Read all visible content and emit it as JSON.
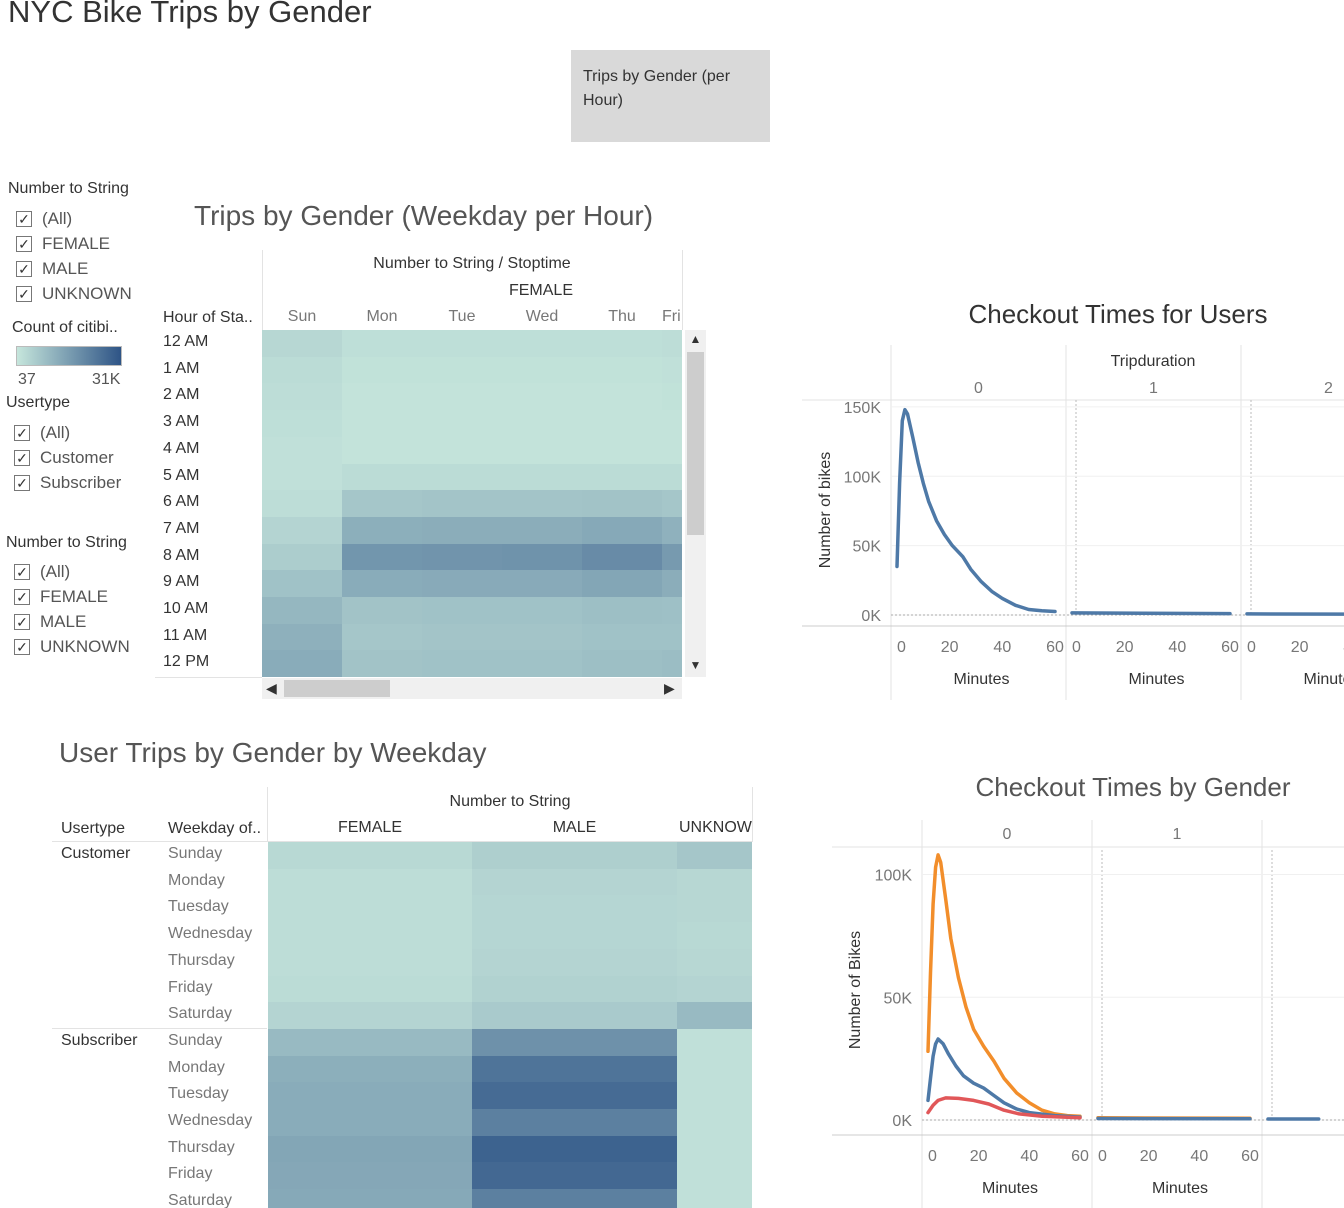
{
  "page": {
    "title": "NYC Bike Trips by Gender"
  },
  "nav_button": {
    "label": "Trips by Gender (per Hour)"
  },
  "filter_gender_1": {
    "title": "Number to String",
    "options": [
      "(All)",
      "FEMALE",
      "MALE",
      "UNKNOWN"
    ]
  },
  "legend": {
    "title": "Count of citibi..",
    "min_label": "37",
    "max_label": "31K",
    "colors": [
      "#c6e6dc",
      "#2e5486"
    ]
  },
  "filter_usertype": {
    "title": "Usertype",
    "options": [
      "(All)",
      "Customer",
      "Subscriber"
    ]
  },
  "filter_gender_2": {
    "title": "Number to String",
    "options": [
      "(All)",
      "FEMALE",
      "MALE",
      "UNKNOWN"
    ]
  },
  "heatmap1": {
    "title": "Trips by Gender (Weekday per Hour)",
    "col_header": "Number to String / Stoptime",
    "group": "FEMALE",
    "row_header": "Hour of Sta..",
    "days": [
      "Sun",
      "Mon",
      "Tue",
      "Wed",
      "Thu",
      "Fri"
    ],
    "hours": [
      "12 AM",
      "1 AM",
      "2 AM",
      "3 AM",
      "4 AM",
      "5 AM",
      "6 AM",
      "7 AM",
      "8 AM",
      "9 AM",
      "10 AM",
      "11 AM",
      "12 PM"
    ]
  },
  "heatmap2": {
    "title": "User Trips by Gender by Weekday",
    "col_header": "Number to String",
    "row_header_1": "Usertype",
    "row_header_2": "Weekday of..",
    "columns": [
      "FEMALE",
      "MALE",
      "UNKNOW"
    ],
    "usertypes": [
      "Customer",
      "Subscriber"
    ],
    "weekdays": [
      "Sunday",
      "Monday",
      "Tuesday",
      "Wednesday",
      "Thursday",
      "Friday",
      "Saturday"
    ]
  },
  "chart_data": [
    {
      "type": "heatmap",
      "title": "Trips by Gender (Weekday per Hour)",
      "x": [
        "Sun",
        "Mon",
        "Tue",
        "Wed",
        "Thu",
        "Fri"
      ],
      "y": [
        "12 AM",
        "1 AM",
        "2 AM",
        "3 AM",
        "4 AM",
        "5 AM",
        "6 AM",
        "7 AM",
        "8 AM",
        "9 AM",
        "10 AM",
        "11 AM",
        "12 PM"
      ],
      "values": [
        [
          0.1,
          0.05,
          0.05,
          0.05,
          0.05,
          0.06
        ],
        [
          0.07,
          0.03,
          0.03,
          0.03,
          0.03,
          0.04
        ],
        [
          0.06,
          0.02,
          0.02,
          0.02,
          0.02,
          0.03
        ],
        [
          0.05,
          0.02,
          0.02,
          0.02,
          0.02,
          0.02
        ],
        [
          0.04,
          0.02,
          0.02,
          0.02,
          0.02,
          0.02
        ],
        [
          0.04,
          0.07,
          0.07,
          0.07,
          0.07,
          0.07
        ],
        [
          0.06,
          0.22,
          0.23,
          0.23,
          0.24,
          0.22
        ],
        [
          0.12,
          0.38,
          0.39,
          0.39,
          0.42,
          0.36
        ],
        [
          0.17,
          0.55,
          0.56,
          0.57,
          0.62,
          0.52
        ],
        [
          0.25,
          0.4,
          0.41,
          0.41,
          0.44,
          0.39
        ],
        [
          0.32,
          0.24,
          0.25,
          0.25,
          0.27,
          0.26
        ],
        [
          0.37,
          0.22,
          0.23,
          0.23,
          0.25,
          0.25
        ],
        [
          0.4,
          0.24,
          0.25,
          0.25,
          0.27,
          0.28
        ]
      ]
    },
    {
      "type": "line",
      "title": "Checkout Times for Users",
      "column_header": "Tripduration",
      "panels": [
        "0",
        "1",
        "2"
      ],
      "xlabel": "Minutes",
      "ylabel": "Number of bikes",
      "x_ticks": [
        "0",
        "20",
        "40",
        "60"
      ],
      "y_ticks": [
        "0K",
        "50K",
        "100K",
        "150K"
      ],
      "ylim": [
        0,
        155000
      ],
      "series": [
        {
          "color": "#4e79a7",
          "panel0": [
            [
              0,
              35000
            ],
            [
              1,
              95000
            ],
            [
              2,
              140000
            ],
            [
              3,
              148000
            ],
            [
              4,
              145000
            ],
            [
              6,
              128000
            ],
            [
              8,
              110000
            ],
            [
              10,
              95000
            ],
            [
              12,
              82000
            ],
            [
              15,
              68000
            ],
            [
              18,
              58000
            ],
            [
              21,
              50000
            ],
            [
              25,
              42000
            ],
            [
              28,
              33000
            ],
            [
              32,
              24000
            ],
            [
              36,
              17000
            ],
            [
              40,
              12000
            ],
            [
              45,
              7000
            ],
            [
              50,
              4000
            ],
            [
              55,
              3000
            ],
            [
              60,
              2500
            ]
          ],
          "panel1": [
            [
              0,
              1500
            ],
            [
              60,
              1000
            ]
          ],
          "panel2": [
            [
              0,
              800
            ],
            [
              60,
              600
            ]
          ]
        }
      ]
    },
    {
      "type": "line",
      "title": "Checkout Times by Gender",
      "panels": [
        "0",
        "1"
      ],
      "xlabel": "Minutes",
      "ylabel": "Number of Bikes",
      "x_ticks": [
        "0",
        "20",
        "40",
        "60"
      ],
      "y_ticks": [
        "0K",
        "50K",
        "100K"
      ],
      "ylim": [
        0,
        110000
      ],
      "series": [
        {
          "color": "#f28e2b",
          "panel0": [
            [
              0,
              28000
            ],
            [
              1,
              60000
            ],
            [
              2,
              88000
            ],
            [
              3,
              103000
            ],
            [
              4,
              108000
            ],
            [
              5,
              105000
            ],
            [
              7,
              90000
            ],
            [
              9,
              74000
            ],
            [
              12,
              58000
            ],
            [
              15,
              46000
            ],
            [
              18,
              37000
            ],
            [
              22,
              30000
            ],
            [
              26,
              24000
            ],
            [
              30,
              17000
            ],
            [
              35,
              11000
            ],
            [
              40,
              7000
            ],
            [
              45,
              4000
            ],
            [
              50,
              2500
            ],
            [
              55,
              1800
            ],
            [
              60,
              1500
            ]
          ],
          "panel1": [
            [
              0,
              900
            ],
            [
              60,
              700
            ]
          ]
        },
        {
          "color": "#4e79a7",
          "panel0": [
            [
              0,
              8000
            ],
            [
              1,
              17000
            ],
            [
              2,
              26000
            ],
            [
              3,
              31000
            ],
            [
              4,
              33000
            ],
            [
              6,
              31000
            ],
            [
              8,
              27000
            ],
            [
              11,
              22000
            ],
            [
              14,
              18000
            ],
            [
              18,
              15000
            ],
            [
              22,
              13000
            ],
            [
              26,
              10000
            ],
            [
              30,
              7000
            ],
            [
              35,
              4500
            ],
            [
              40,
              3000
            ],
            [
              50,
              1800
            ],
            [
              60,
              1200
            ]
          ],
          "panel1": [
            [
              0,
              600
            ],
            [
              60,
              500
            ]
          ],
          "panel2": [
            [
              0,
              400
            ],
            [
              20,
              400
            ]
          ]
        },
        {
          "color": "#e15759",
          "panel0": [
            [
              0,
              3000
            ],
            [
              2,
              6000
            ],
            [
              4,
              8000
            ],
            [
              7,
              9000
            ],
            [
              12,
              8800
            ],
            [
              18,
              8000
            ],
            [
              24,
              6500
            ],
            [
              30,
              4000
            ],
            [
              36,
              2500
            ],
            [
              45,
              1500
            ],
            [
              60,
              900
            ]
          ]
        }
      ]
    }
  ]
}
